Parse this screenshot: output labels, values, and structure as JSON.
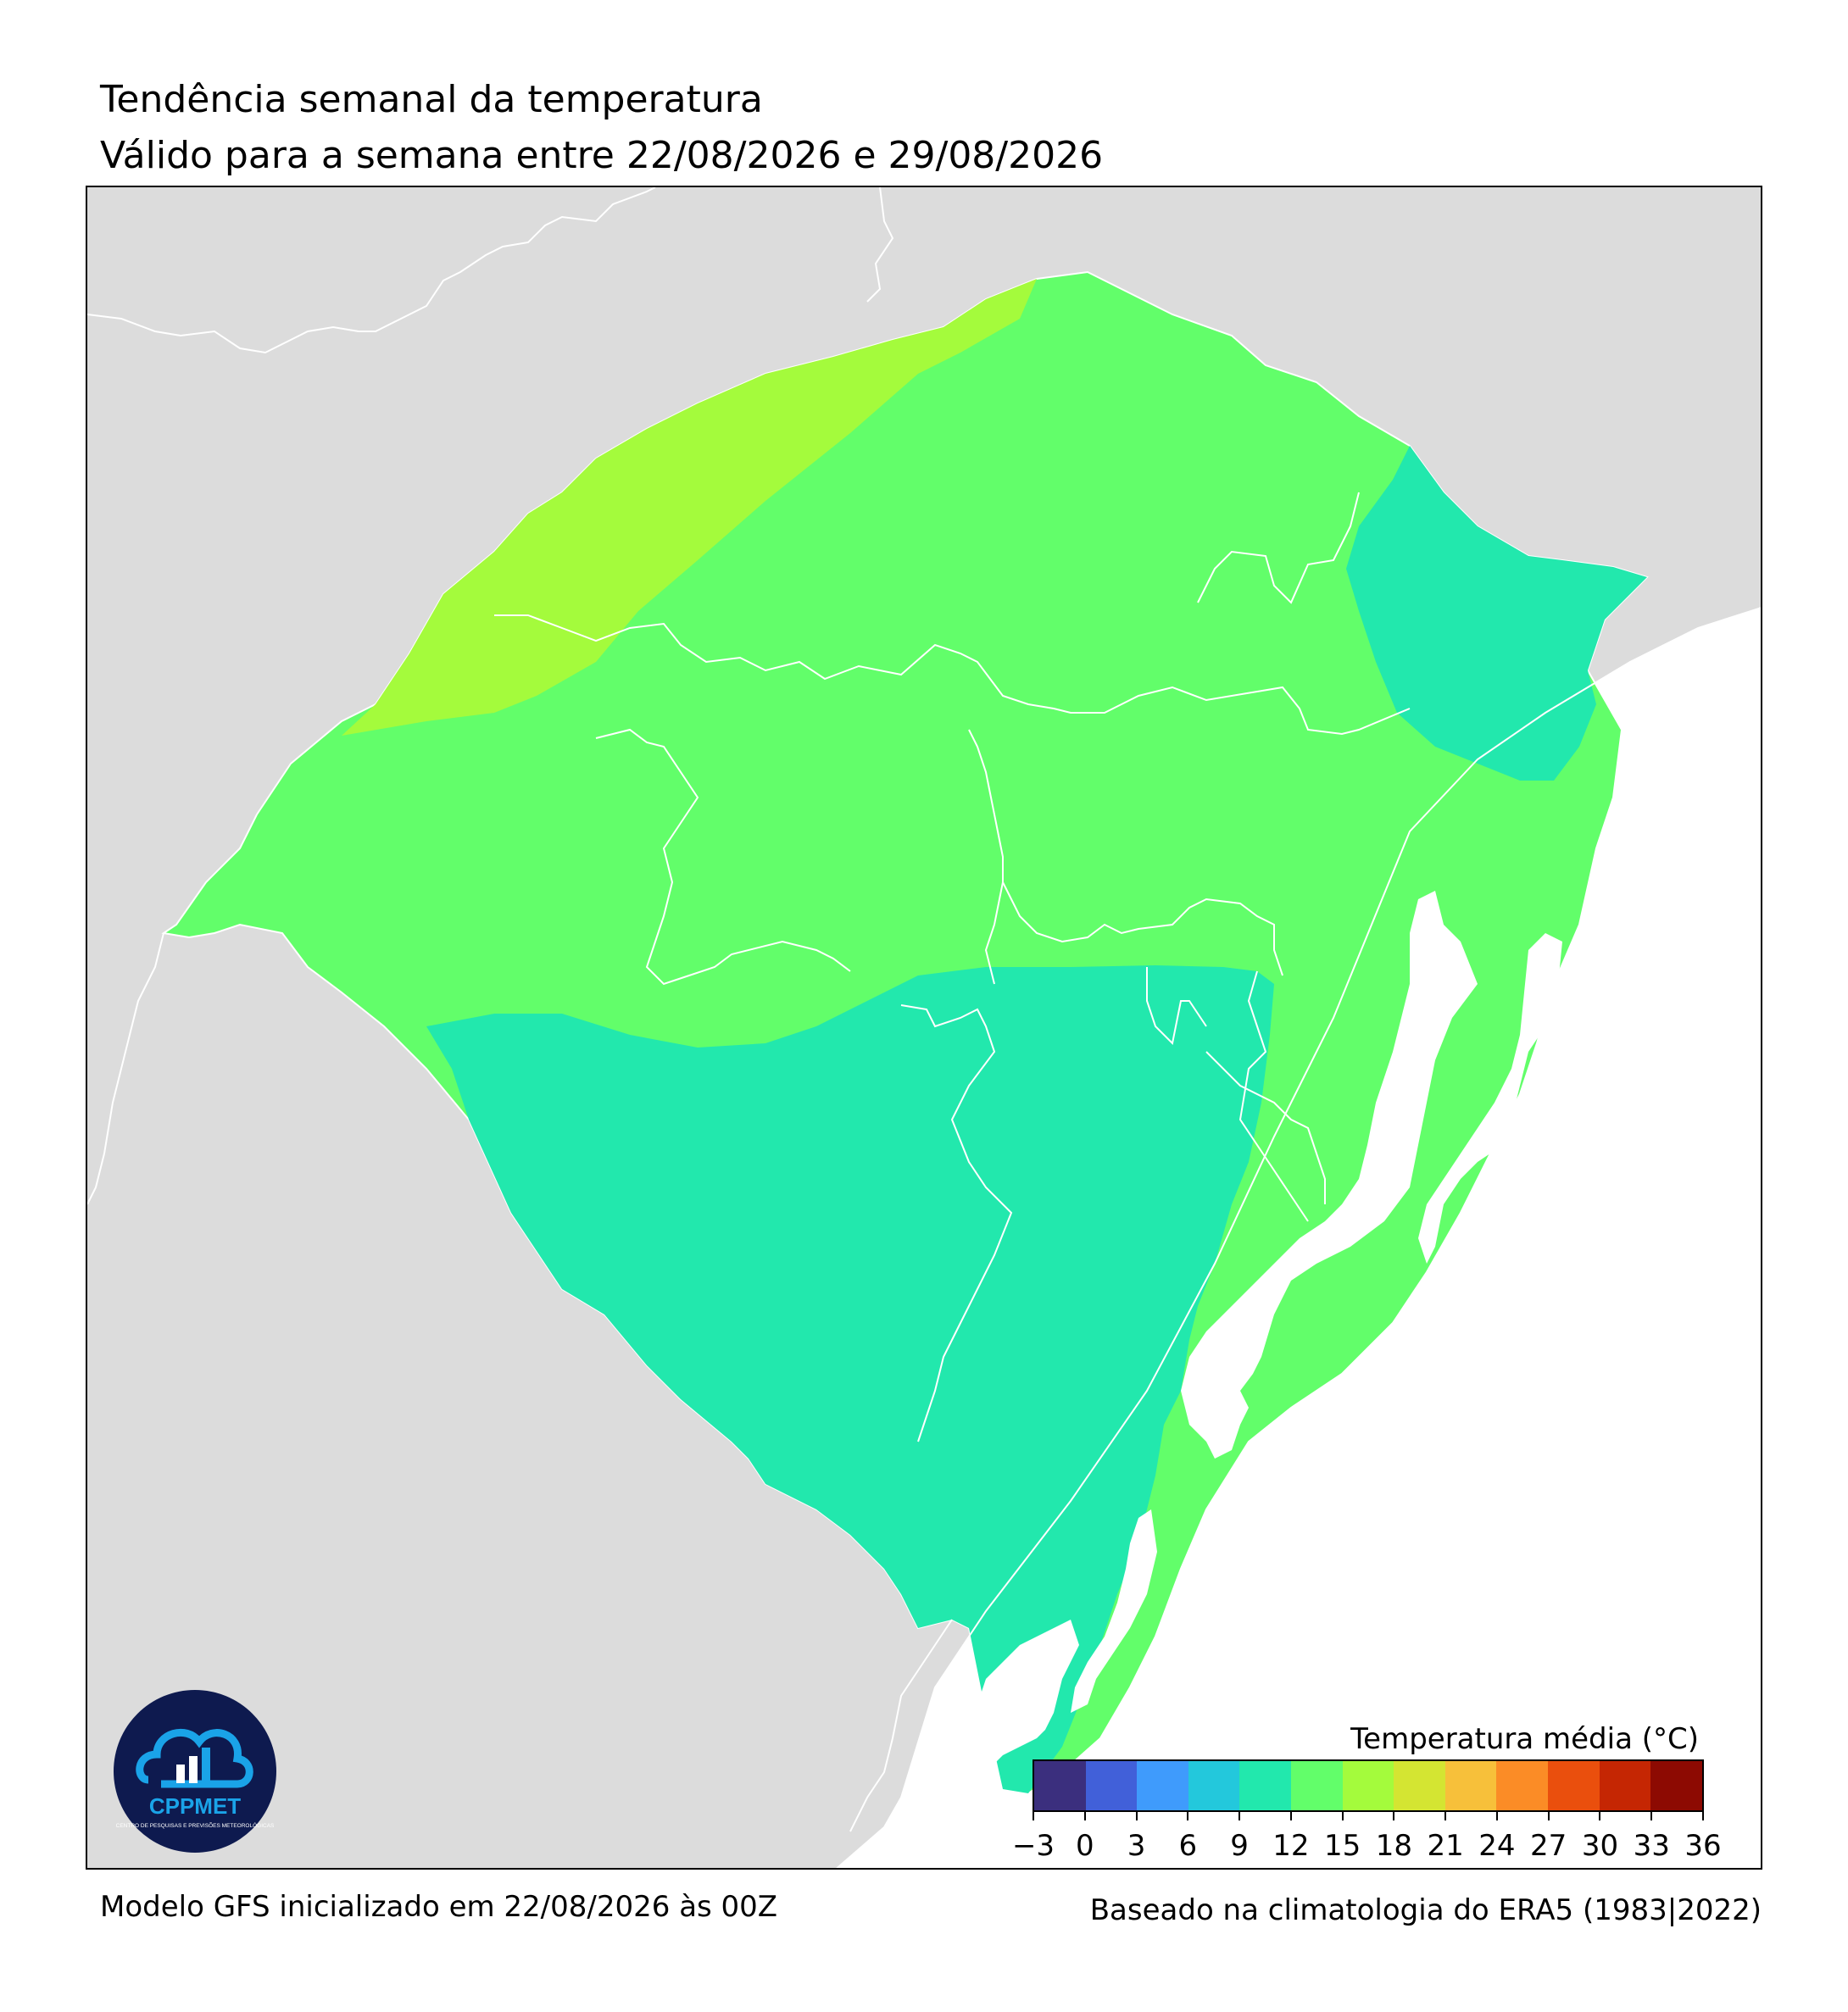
{
  "title": "Tendência semanal da temperatura",
  "subtitle": "Válido para a semana entre 22/08/2026 e 29/08/2026",
  "footer": {
    "model": "Modelo GFS inicializado em 22/08/2026 às 00Z",
    "climatology": "Baseado na climatologia do ERA5 (1983|2022)"
  },
  "logo": {
    "text": "CPPMET",
    "subtext": "CENTRO DE PESQUISAS E PREVISÕES METEOROLÓGICAS"
  },
  "colors": {
    "land_background": "#dcdcdc",
    "ocean": "#ffffff",
    "zone_15_18": "#a4fb3c",
    "zone_12_15": "#62fe6a",
    "zone_9_12": "#22e8ad",
    "logo_bg": "#0e1a4f",
    "logo_accent": "#1aa3e8"
  },
  "legend": {
    "title": "Temperatura média (°C)",
    "ticks": [
      "−3",
      "0",
      "3",
      "6",
      "9",
      "12",
      "15",
      "18",
      "21",
      "24",
      "27",
      "30",
      "33",
      "36"
    ],
    "colors": [
      "#3b2f7e",
      "#4160d9",
      "#3f9bfc",
      "#23c8dc",
      "#22e8ad",
      "#62fe6a",
      "#a4fb3c",
      "#d4e532",
      "#f7c03a",
      "#fb8c26",
      "#ea4f0d",
      "#c52603",
      "#8d0a02"
    ]
  },
  "map": {
    "zones": [
      {
        "name": "north-west band",
        "range": "15–18"
      },
      {
        "name": "central region",
        "range": "12–15"
      },
      {
        "name": "north-east region",
        "range": "9–12"
      },
      {
        "name": "south region",
        "range": "9–12"
      }
    ]
  }
}
